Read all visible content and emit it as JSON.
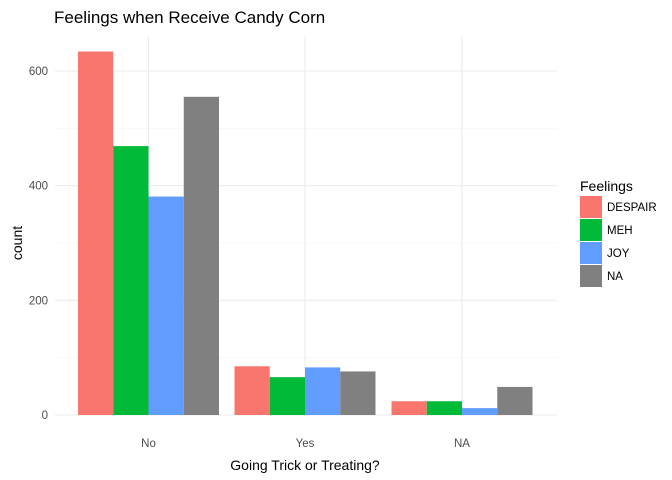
{
  "chart_data": {
    "type": "bar",
    "title": "Feelings when Receive Candy Corn",
    "xlabel": "Going Trick or Treating?",
    "ylabel": "count",
    "categories": [
      "No",
      "Yes",
      "NA"
    ],
    "series": [
      {
        "name": "DESPAIR",
        "color": "#F8766D",
        "values": [
          634,
          85,
          24
        ]
      },
      {
        "name": "MEH",
        "color": "#00BA38",
        "values": [
          469,
          66,
          24
        ]
      },
      {
        "name": "JOY",
        "color": "#619CFF",
        "values": [
          381,
          83,
          12
        ]
      },
      {
        "name": "NA",
        "color": "#808080",
        "values": [
          555,
          76,
          49
        ]
      }
    ],
    "yticks": [
      0,
      200,
      400,
      600
    ],
    "ytick_labels": [
      "0",
      "200",
      "400",
      "600"
    ],
    "ylim": [
      0,
      660
    ],
    "legend_title": "Feelings",
    "legend_position": "right",
    "grid": true
  }
}
